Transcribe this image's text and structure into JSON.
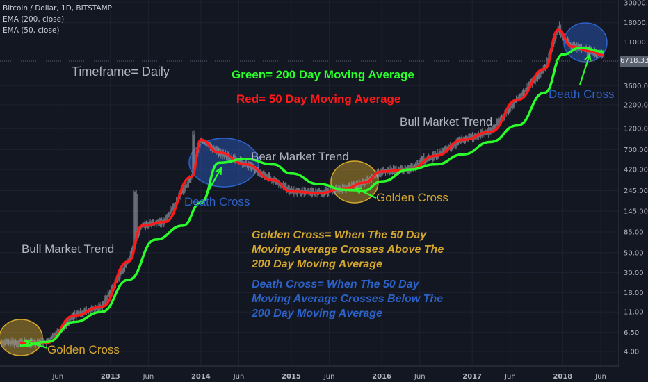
{
  "legend": {
    "symbol": "Bitcoin / Dollar, 1D, BITSTAMP",
    "ema200": "EMA (200, close)",
    "ema50": "EMA (50, close)"
  },
  "annotations": {
    "timeframe": "Timeframe= Daily",
    "green_key": "Green= 200 Day Moving Average",
    "red_key": "Red= 50 Day Moving Average",
    "bull1": "Bull Market Trend",
    "bull2": "Bull Market Trend",
    "bear": "Bear Market Trend",
    "death1": "Death Cross",
    "death2": "Death Cross",
    "golden1": "Golden Cross",
    "golden2": "Golden Cross",
    "golden_def": [
      "Golden Cross= When The 50 Day",
      "Moving Average Crosses Above The",
      "200 Day Moving Average"
    ],
    "death_def": [
      "Death Cross= When The 50 Day",
      "Moving Average Crosses Below The",
      "200 Day Moving Average"
    ]
  },
  "colors": {
    "background": "#131722",
    "candles": "#9598a1",
    "ema200": "#2bff2b",
    "ema50": "#ff1a1a",
    "golden": "#d4a72c",
    "blue": "#2d62c9",
    "green_text": "#2bff2b",
    "red_text": "#ff1a1a"
  },
  "chart_data": {
    "type": "line",
    "title": "Bitcoin / Dollar, 1D, BITSTAMP",
    "y_scale": "log",
    "ylim": [
      3.4,
      30000
    ],
    "y_ticks": [
      "30000.00",
      "18000.00",
      "11000.00",
      "6718.33",
      "3600.00",
      "2200.00",
      "1200.00",
      "700.00",
      "420.00",
      "245.00",
      "145.00",
      "85.00",
      "50.00",
      "30.00",
      "18.00",
      "11.00",
      "6.50",
      "4.00"
    ],
    "x_ticks": [
      "Jun",
      "2013",
      "Jun",
      "2014",
      "Jun",
      "2015",
      "Jun",
      "2016",
      "Jun",
      "2017",
      "Jun",
      "2018",
      "Jun"
    ],
    "last_price": "6718.33",
    "series": [
      {
        "name": "EMA (200, close)",
        "color": "#2bff2b",
        "x": [
          2012.0,
          2012.3,
          2012.6,
          2012.9,
          2013.2,
          2013.5,
          2013.8,
          2014.0,
          2014.2,
          2014.5,
          2014.8,
          2015.0,
          2015.3,
          2015.6,
          2015.8,
          2016.0,
          2016.3,
          2016.6,
          2016.9,
          2017.2,
          2017.5,
          2017.8,
          2018.0,
          2018.2,
          2018.45
        ],
        "y": [
          4.6,
          5.1,
          8.5,
          11,
          25,
          70,
          100,
          180,
          500,
          550,
          480,
          380,
          290,
          250,
          245,
          310,
          420,
          480,
          620,
          850,
          1300,
          3000,
          8000,
          9500,
          8600
        ]
      },
      {
        "name": "EMA (50, close)",
        "color": "#ff1a1a",
        "x": [
          2012.0,
          2012.3,
          2012.6,
          2012.9,
          2013.2,
          2013.35,
          2013.6,
          2013.9,
          2014.0,
          2014.2,
          2014.5,
          2014.8,
          2015.0,
          2015.3,
          2015.6,
          2015.8,
          2016.0,
          2016.3,
          2016.6,
          2016.9,
          2017.2,
          2017.5,
          2017.8,
          2017.95,
          2018.1,
          2018.3,
          2018.45
        ],
        "y": [
          5,
          5,
          10,
          12.5,
          40,
          100,
          110,
          350,
          900,
          650,
          480,
          320,
          240,
          230,
          260,
          300,
          400,
          420,
          600,
          900,
          1100,
          2500,
          5500,
          15000,
          9800,
          8700,
          7800
        ]
      }
    ]
  }
}
